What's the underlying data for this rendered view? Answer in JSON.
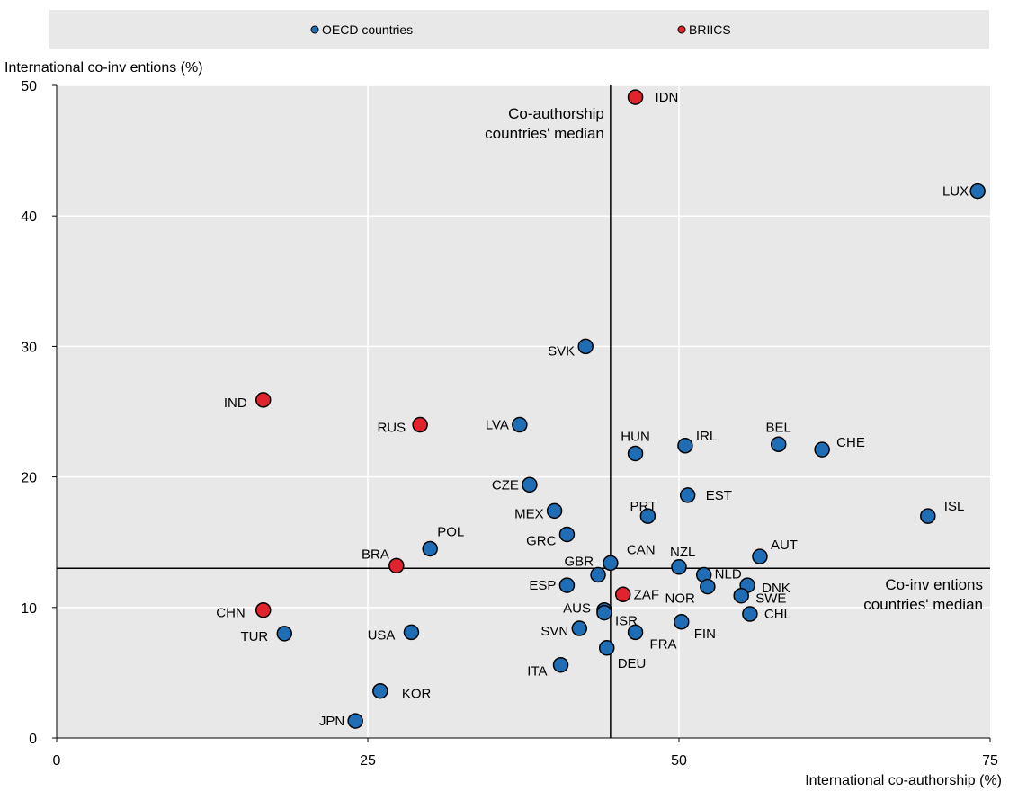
{
  "chart_data": {
    "type": "scatter",
    "xlabel": "International co-authorship (%)",
    "ylabel": "International co-inv entions (%)",
    "xlim": [
      0,
      75
    ],
    "ylim": [
      0,
      50
    ],
    "x_ticks": [
      0,
      25,
      50,
      75
    ],
    "y_ticks": [
      0,
      10,
      20,
      30,
      40,
      50
    ],
    "grid": true,
    "legend_position": "top",
    "legend": [
      {
        "name": "OECD countries",
        "color": "#1f6eb5"
      },
      {
        "name": "BRIICS",
        "color": "#e0232c"
      }
    ],
    "medians": {
      "x": 44.5,
      "y": 13,
      "x_label_lines": [
        "Co-authorship",
        "countries' median"
      ],
      "y_label_lines": [
        "Co-inv entions",
        "countries' median"
      ]
    },
    "series": [
      {
        "name": "OECD countries",
        "color": "#1f6eb5",
        "points": [
          {
            "label": "LUX",
            "x": 74.0,
            "y": 41.9
          },
          {
            "label": "SVK",
            "x": 42.5,
            "y": 30.0
          },
          {
            "label": "LVA",
            "x": 37.2,
            "y": 24.0
          },
          {
            "label": "HUN",
            "x": 46.5,
            "y": 21.8
          },
          {
            "label": "IRL",
            "x": 50.5,
            "y": 22.4
          },
          {
            "label": "BEL",
            "x": 58.0,
            "y": 22.5
          },
          {
            "label": "CHE",
            "x": 61.5,
            "y": 22.1
          },
          {
            "label": "CZE",
            "x": 38.0,
            "y": 19.4
          },
          {
            "label": "EST",
            "x": 50.7,
            "y": 18.6
          },
          {
            "label": "ISL",
            "x": 70.0,
            "y": 17.0
          },
          {
            "label": "MEX",
            "x": 40.0,
            "y": 17.4
          },
          {
            "label": "PRT",
            "x": 47.5,
            "y": 17.0
          },
          {
            "label": "GRC",
            "x": 41.0,
            "y": 15.6
          },
          {
            "label": "POL",
            "x": 30.0,
            "y": 14.5
          },
          {
            "label": "AUT",
            "x": 56.5,
            "y": 13.9
          },
          {
            "label": "CAN",
            "x": 44.5,
            "y": 13.4
          },
          {
            "label": "NZL",
            "x": 50.0,
            "y": 13.1
          },
          {
            "label": "GBR",
            "x": 43.5,
            "y": 12.5
          },
          {
            "label": "NLD",
            "x": 52.0,
            "y": 12.5
          },
          {
            "label": "DNK",
            "x": 55.5,
            "y": 11.7
          },
          {
            "label": "ESP",
            "x": 41.0,
            "y": 11.7
          },
          {
            "label": "NOR",
            "x": 52.3,
            "y": 11.6
          },
          {
            "label": "SWE",
            "x": 55.0,
            "y": 10.9
          },
          {
            "label": "AUS",
            "x": 44.0,
            "y": 9.8
          },
          {
            "label": "CHL",
            "x": 55.7,
            "y": 9.5
          },
          {
            "label": "FIN",
            "x": 50.2,
            "y": 8.9
          },
          {
            "label": "ISR",
            "x": 44.0,
            "y": 9.6
          },
          {
            "label": "SVN",
            "x": 42.0,
            "y": 8.4
          },
          {
            "label": "FRA",
            "x": 46.5,
            "y": 8.1
          },
          {
            "label": "USA",
            "x": 28.5,
            "y": 8.1
          },
          {
            "label": "TUR",
            "x": 18.3,
            "y": 8.0
          },
          {
            "label": "DEU",
            "x": 44.2,
            "y": 6.9
          },
          {
            "label": "ITA",
            "x": 40.5,
            "y": 5.6
          },
          {
            "label": "KOR",
            "x": 26.0,
            "y": 3.6
          },
          {
            "label": "JPN",
            "x": 24.0,
            "y": 1.3
          }
        ]
      },
      {
        "name": "BRIICS",
        "color": "#e0232c",
        "points": [
          {
            "label": "IDN",
            "x": 46.5,
            "y": 49.1
          },
          {
            "label": "IND",
            "x": 16.6,
            "y": 25.9
          },
          {
            "label": "RUS",
            "x": 29.2,
            "y": 24.0
          },
          {
            "label": "BRA",
            "x": 27.3,
            "y": 13.2
          },
          {
            "label": "ZAF",
            "x": 45.5,
            "y": 11.0
          },
          {
            "label": "CHN",
            "x": 16.6,
            "y": 9.8
          }
        ]
      }
    ]
  }
}
